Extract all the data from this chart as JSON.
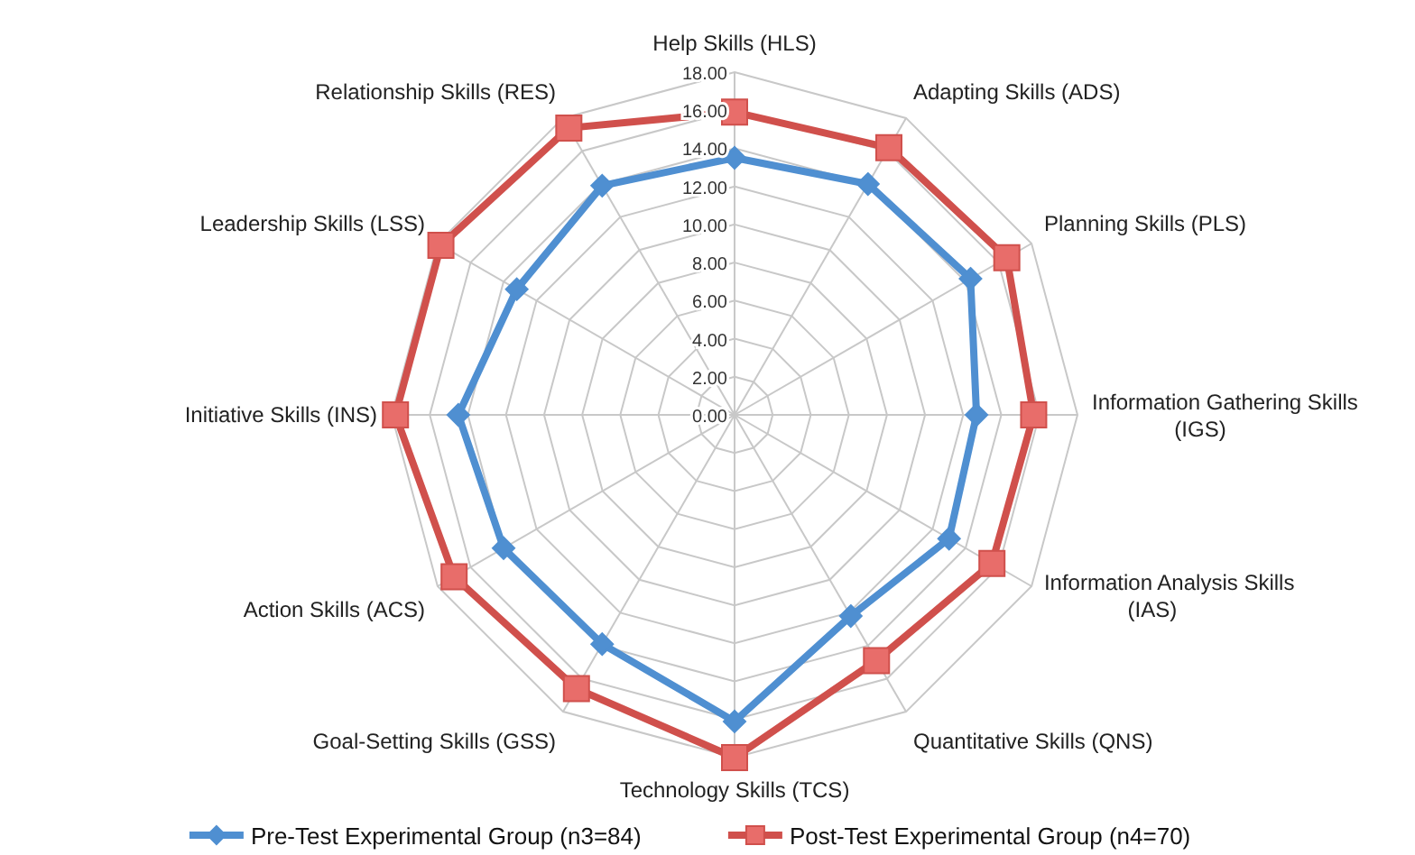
{
  "chart_data": {
    "type": "radar",
    "categories": [
      "Help Skills (HLS)",
      "Adapting Skills (ADS)",
      "Planning Skills (PLS)",
      "Information Gathering Skills (IGS)",
      "Information Analysis Skills (IAS)",
      "Quantitative Skills (QNS)",
      "Technology Skills (TCS)",
      "Goal-Setting Skills (GSS)",
      "Action Skills (ACS)",
      "Initiative Skills (INS)",
      "Leadership Skills (LSS)",
      "Relationship Skills (RES)"
    ],
    "series": [
      {
        "name": "Pre-Test Experimental Group (n3=84)",
        "color": "#4f8fd1",
        "marker": "diamond",
        "values": [
          13.5,
          14.0,
          14.3,
          12.7,
          13.0,
          12.2,
          16.1,
          13.9,
          14.0,
          14.5,
          13.2,
          13.9
        ]
      },
      {
        "name": "Post-Test Experimental Group (n4=70)",
        "color": "#d0504c",
        "marker": "square",
        "values": [
          15.9,
          16.2,
          16.5,
          15.7,
          15.6,
          14.9,
          18.0,
          16.6,
          17.0,
          17.8,
          17.8,
          17.4
        ]
      }
    ],
    "ylim": [
      0,
      18
    ],
    "yticks": [
      {
        "value": 0,
        "label": "0.00"
      },
      {
        "value": 2,
        "label": "2.00"
      },
      {
        "value": 4,
        "label": "4.00"
      },
      {
        "value": 6,
        "label": "6.00"
      },
      {
        "value": 8,
        "label": "8.00"
      },
      {
        "value": 10,
        "label": "10.00"
      },
      {
        "value": 12,
        "label": "12.00"
      },
      {
        "value": 14,
        "label": "14.00"
      },
      {
        "value": 16,
        "label": "16.00"
      },
      {
        "value": 18,
        "label": "18.00"
      }
    ],
    "grid": true,
    "legend": "bottom",
    "line_style": "solid"
  }
}
